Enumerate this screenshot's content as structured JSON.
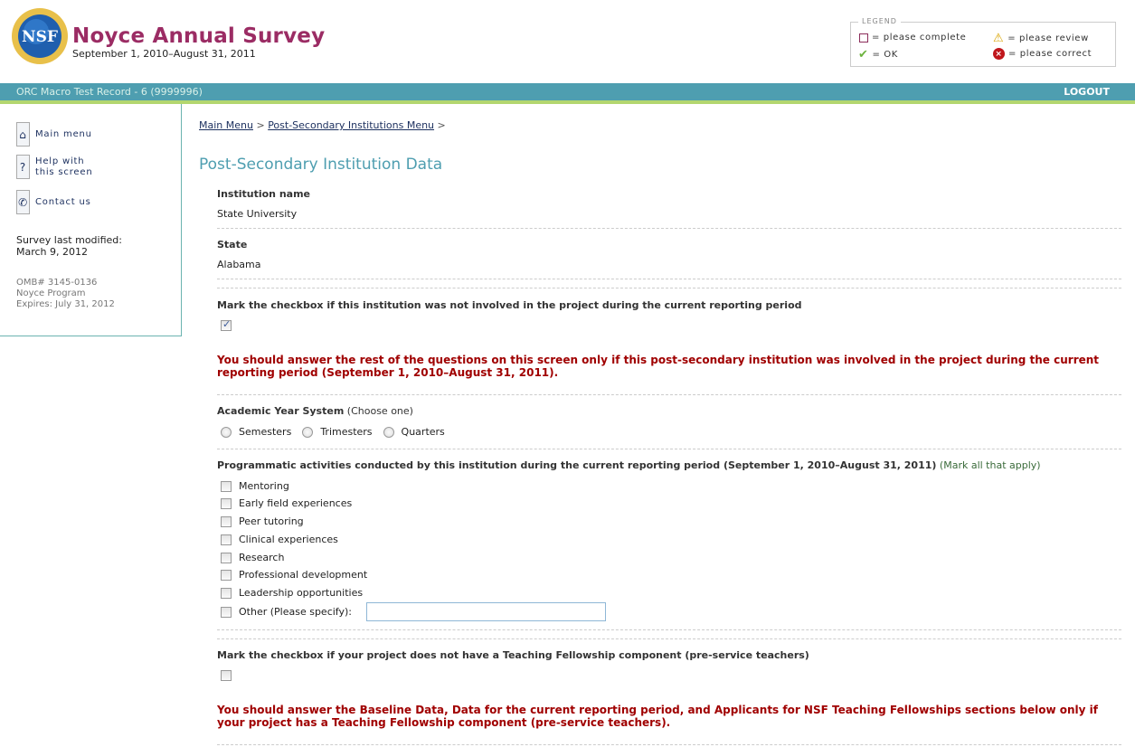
{
  "header": {
    "logo_text": "NSF",
    "title": "Noyce Annual Survey",
    "period": "September 1, 2010–August 31, 2011"
  },
  "legend": {
    "title": "LEGEND",
    "items": [
      {
        "icon": "empty-box-icon",
        "label": "= please complete"
      },
      {
        "icon": "warning-icon",
        "label": "= please review"
      },
      {
        "icon": "checkmark-icon",
        "label": "= OK"
      },
      {
        "icon": "error-x-icon",
        "label": "= please correct"
      }
    ]
  },
  "colors": {
    "brand": "#9b2c64",
    "bar": "#4e9eb0",
    "accent_line": "#b3d66f",
    "warning_text": "#a00000"
  },
  "topbar": {
    "record": "ORC Macro Test Record - 6 (9999996)",
    "logout": "LOGOUT"
  },
  "sidebar": {
    "links": [
      {
        "label": "Main menu",
        "icon": "main-menu-icon"
      },
      {
        "label_line1": "Help with",
        "label_line2": "this screen",
        "icon": "help-icon"
      },
      {
        "label": "Contact us",
        "icon": "phone-icon"
      }
    ],
    "modified_label": "Survey last modified:",
    "modified_date": "March 9, 2012",
    "omb": "OMB# 3145-0136",
    "program": "Noyce Program",
    "expires": "Expires: July 31, 2012"
  },
  "breadcrumb": {
    "items": [
      "Main Menu",
      "Post-Secondary Institutions Menu"
    ],
    "sep": ">"
  },
  "page_title": "Post-Secondary Institution Data",
  "form": {
    "institution_label": "Institution name",
    "institution_value": "State University",
    "state_label": "State",
    "state_value": "Alabama",
    "not_involved_label": "Mark the checkbox if this institution was not involved in the project during the current reporting period",
    "not_involved_checked": true,
    "warning1": "You should answer the rest of the questions on this screen only if this post-secondary institution was involved in the project during the current reporting period (September 1, 2010–August 31, 2011).",
    "academic_label": "Academic Year System",
    "academic_hint": "(Choose one)",
    "academic_options": [
      "Semesters",
      "Trimesters",
      "Quarters"
    ],
    "activities_label": "Programmatic activities conducted by this institution during the current reporting period (September 1, 2010–August 31, 2011)",
    "activities_hint": "(Mark all that apply)",
    "activities": [
      "Mentoring",
      "Early field experiences",
      "Peer tutoring",
      "Clinical experiences",
      "Research",
      "Professional development",
      "Leadership opportunities",
      "Other (Please specify):"
    ],
    "other_value": "",
    "no_fellowship_label": "Mark the checkbox if your project does not have a Teaching Fellowship component (pre-service teachers)",
    "no_fellowship_checked": false,
    "warning2": "You should answer the Baseline Data, Data for the current reporting period, and Applicants for NSF Teaching Fellowships sections below only if your project has a Teaching Fellowship component (pre-service teachers)."
  }
}
